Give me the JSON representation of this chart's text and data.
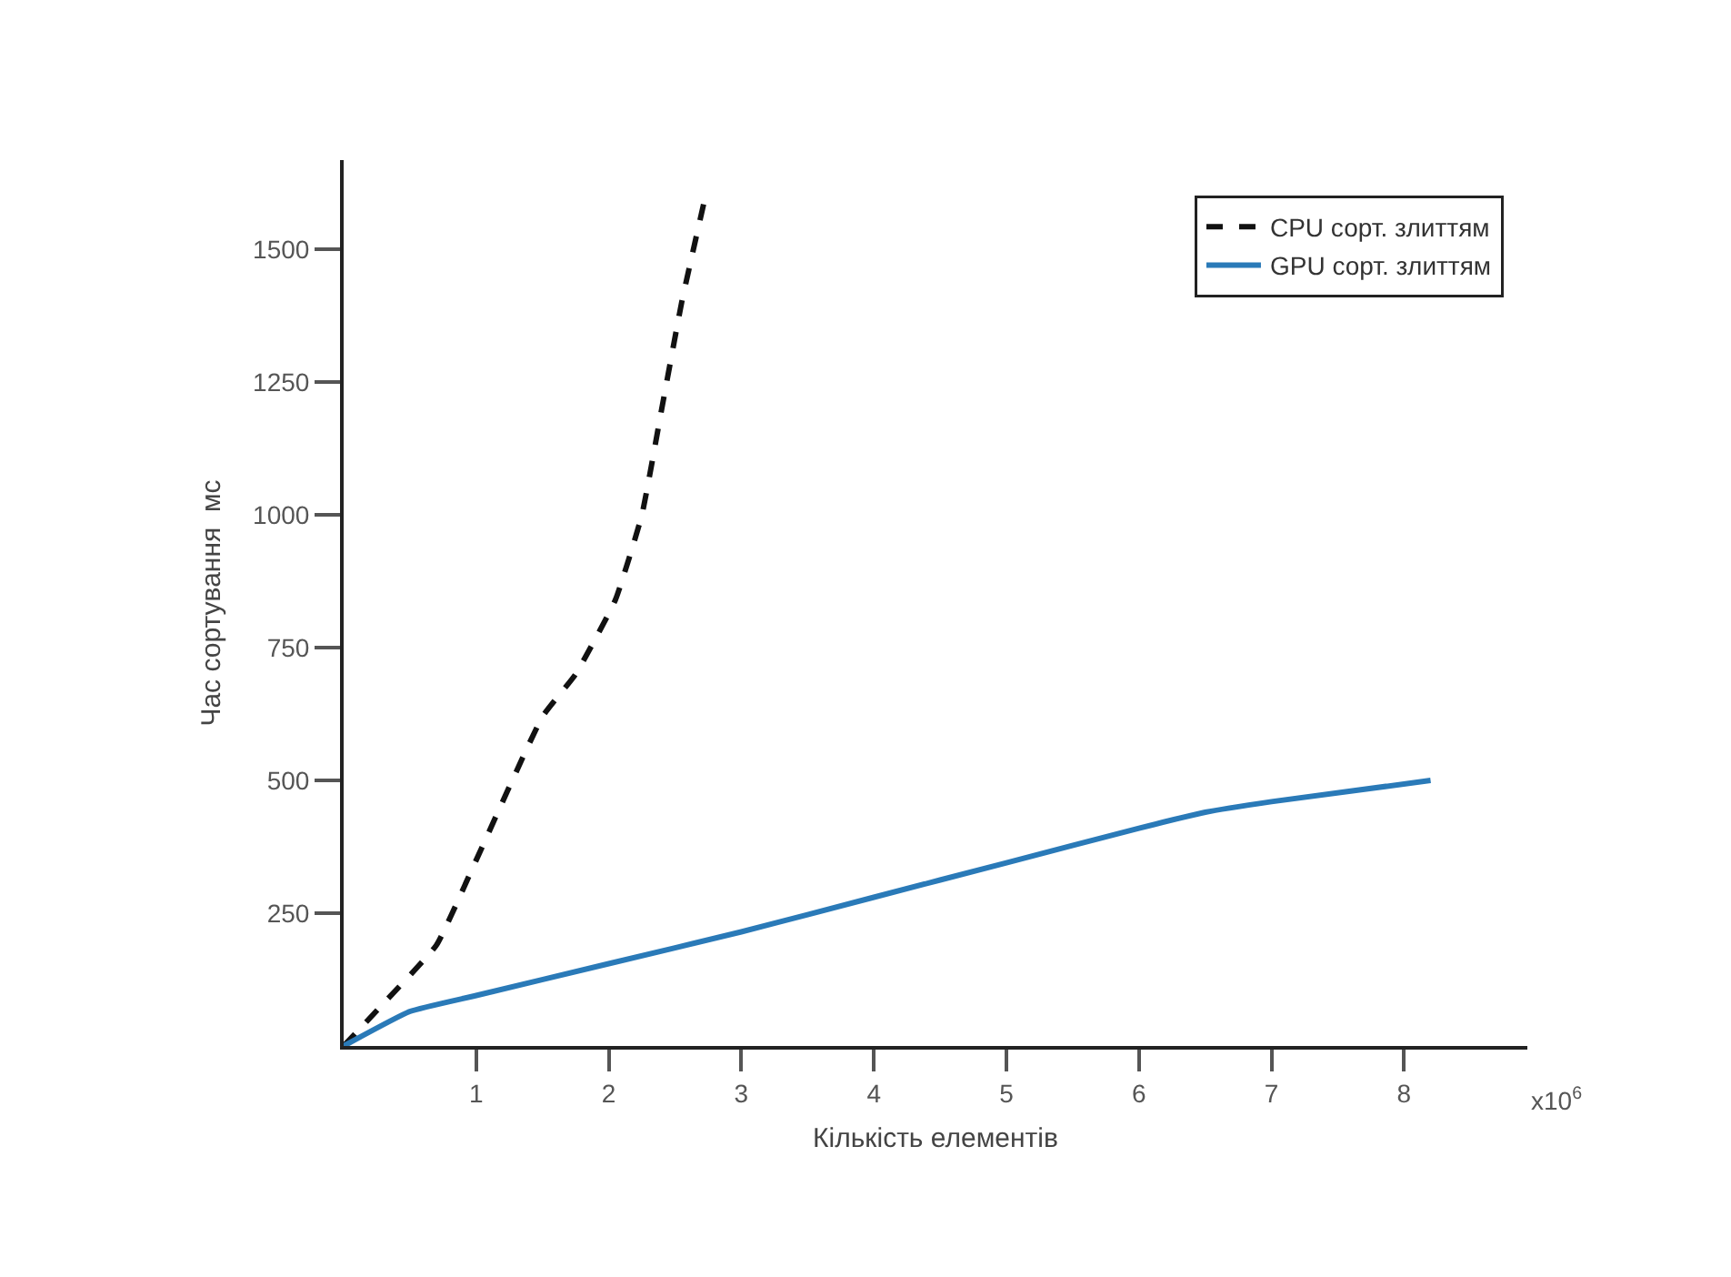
{
  "chart_data": {
    "type": "line",
    "xlabel": "Кількість елементів",
    "ylabel": "Час сортування  мс",
    "annotations": [
      "x10$^{6}$"
    ],
    "xlim": [
      0,
      8.93
    ],
    "xticks": [
      1,
      2,
      3,
      4,
      5,
      6,
      7,
      8
    ],
    "ylim": [
      0,
      1668
    ],
    "yticks": [
      250,
      500,
      750,
      1000,
      1250,
      1500
    ],
    "legend": "top right",
    "series": [
      {
        "name": "CPU сорт. злиттям",
        "color": "#111111",
        "line_style": "dashed",
        "x": [
          0,
          0.3,
          0.7,
          1.0,
          1.5,
          1.75,
          2.05,
          2.25,
          2.4,
          2.55,
          2.72
        ],
        "values": [
          0,
          80,
          190,
          350,
          620,
          700,
          840,
          1000,
          1200,
          1400,
          1590
        ]
      },
      {
        "name": "GPU сорт. злиттям",
        "color": "#2a7ab8",
        "line_style": "solid",
        "x": [
          0,
          0.5,
          1,
          2,
          3,
          4,
          5,
          6,
          6.5,
          7,
          8.2
        ],
        "values": [
          0,
          65,
          95,
          155,
          215,
          280,
          345,
          410,
          440,
          460,
          500
        ]
      }
    ]
  }
}
